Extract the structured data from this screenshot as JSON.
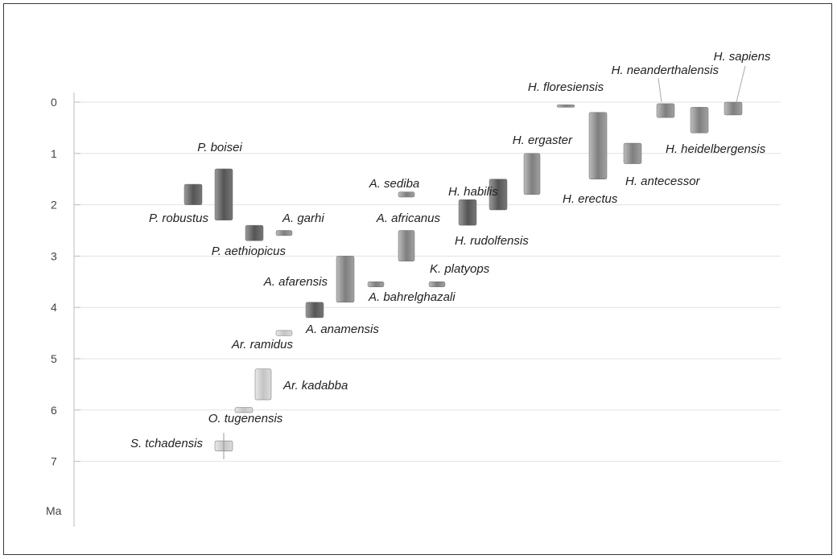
{
  "chart_data": {
    "type": "range",
    "title": "",
    "y_unit_label": "Ma",
    "y_ticks": [
      0,
      1,
      2,
      3,
      4,
      5,
      6,
      7
    ],
    "ylim": [
      0,
      8
    ],
    "y_inverted": true,
    "grid": "horizontal",
    "legend": "none",
    "colors": {
      "dark": "#5a5a5a",
      "mid": "#8c8c8c",
      "light": "#d2d2d2",
      "grid": "#e2e2e2",
      "axis": "#bcbcbc"
    },
    "taxa": [
      {
        "name": "S. tchadensis",
        "start": 6.6,
        "end": 6.8,
        "shade": "light",
        "cross": true
      },
      {
        "name": "O. tugenensis",
        "start": 5.95,
        "end": 6.05,
        "shade": "light"
      },
      {
        "name": "Ar. kadabba",
        "start": 5.2,
        "end": 5.8,
        "shade": "light"
      },
      {
        "name": "Ar. ramidus",
        "start": 4.45,
        "end": 4.55,
        "shade": "light"
      },
      {
        "name": "A. anamensis",
        "start": 3.9,
        "end": 4.2,
        "shade": "dark"
      },
      {
        "name": "A. afarensis",
        "start": 3.0,
        "end": 3.9,
        "shade": "mid"
      },
      {
        "name": "A. bahrelghazali",
        "start": 3.5,
        "end": 3.6,
        "shade": "mid"
      },
      {
        "name": "K. platyops",
        "start": 3.5,
        "end": 3.6,
        "shade": "mid"
      },
      {
        "name": "A. africanus",
        "start": 2.5,
        "end": 3.1,
        "shade": "mid"
      },
      {
        "name": "A. garhi",
        "start": 2.5,
        "end": 2.6,
        "shade": "mid"
      },
      {
        "name": "A. sediba",
        "start": 1.75,
        "end": 1.85,
        "shade": "mid"
      },
      {
        "name": "P. aethiopicus",
        "start": 2.4,
        "end": 2.7,
        "shade": "dark"
      },
      {
        "name": "P. robustus",
        "start": 1.6,
        "end": 2.0,
        "shade": "dark"
      },
      {
        "name": "P. boisei",
        "start": 1.3,
        "end": 2.3,
        "shade": "dark"
      },
      {
        "name": "H. rudolfensis",
        "start": 1.9,
        "end": 2.4,
        "shade": "dark"
      },
      {
        "name": "H. habilis",
        "start": 1.5,
        "end": 2.1,
        "shade": "dark"
      },
      {
        "name": "H. ergaster",
        "start": 1.0,
        "end": 1.8,
        "shade": "mid"
      },
      {
        "name": "H. erectus",
        "start": 0.2,
        "end": 1.5,
        "shade": "mid"
      },
      {
        "name": "H. floresiensis",
        "start": 0.05,
        "end": 0.1,
        "shade": "mid"
      },
      {
        "name": "H. antecessor",
        "start": 0.8,
        "end": 1.2,
        "shade": "mid"
      },
      {
        "name": "H. neanderthalensis",
        "start": 0.03,
        "end": 0.3,
        "shade": "mid"
      },
      {
        "name": "H. heidelbergensis",
        "start": 0.1,
        "end": 0.6,
        "shade": "mid"
      },
      {
        "name": "H. sapiens",
        "start": 0.0,
        "end": 0.25,
        "shade": "mid"
      }
    ]
  }
}
